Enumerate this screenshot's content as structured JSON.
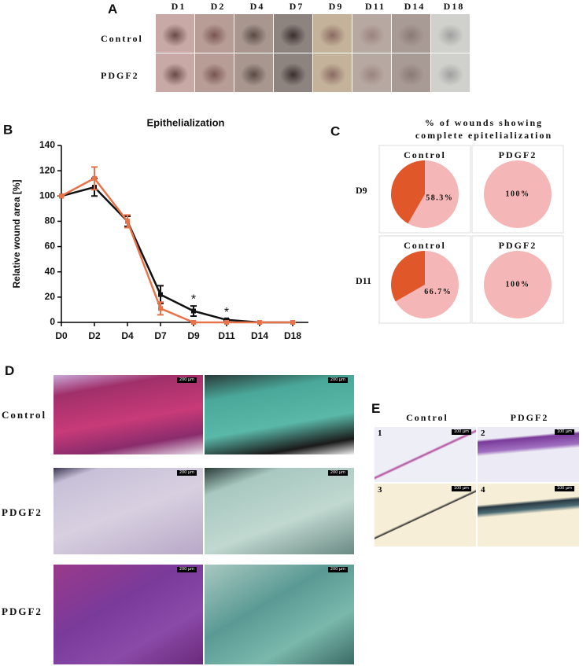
{
  "panel_a": {
    "label": "A",
    "columns": [
      "D1",
      "D2",
      "D4",
      "D7",
      "D9",
      "D11",
      "D14",
      "D18"
    ],
    "rows": [
      "Control",
      "PDGF2"
    ]
  },
  "chart_data": [
    {
      "type": "line",
      "panel_label": "B",
      "title": "Epithelialization",
      "y_label": "Relative wound area [%]",
      "categories": [
        "D0",
        "D2",
        "D4",
        "D7",
        "D9",
        "D11",
        "D14",
        "D18"
      ],
      "series": [
        {
          "color": "#111111",
          "values": [
            100,
            107,
            80,
            22,
            9,
            2,
            0,
            0
          ],
          "errors": [
            0,
            7,
            4,
            7,
            4,
            0.5,
            0,
            0
          ]
        },
        {
          "color": "#e8734a",
          "values": [
            100,
            114,
            80,
            11,
            0,
            0,
            0,
            0
          ],
          "errors": [
            0,
            9,
            5,
            5,
            0,
            0,
            0,
            0
          ]
        }
      ],
      "significance": [
        null,
        null,
        null,
        null,
        "*",
        "*",
        null,
        null
      ],
      "ylim": [
        0,
        140
      ],
      "yticks": [
        0,
        20,
        40,
        60,
        80,
        100,
        120,
        140
      ]
    },
    {
      "type": "pie",
      "panel_label": "C",
      "title": "% of wounds showing complete epitelialization",
      "row_labels": [
        "D9",
        "D11"
      ],
      "pies": [
        {
          "header": "Control",
          "values": [
            58.3,
            41.7
          ],
          "value_labels": [
            "58.3%",
            null
          ],
          "colors": [
            "#f4b6b6",
            "#e0572a"
          ]
        },
        {
          "header": "PDGF2",
          "values": [
            100
          ],
          "value_labels": [
            "100%"
          ],
          "colors": [
            "#f4b6b6"
          ]
        },
        {
          "header": "Control",
          "values": [
            66.7,
            33.3
          ],
          "value_labels": [
            "66.7%",
            null
          ],
          "colors": [
            "#f4b6b6",
            "#e0572a"
          ]
        },
        {
          "header": "PDGF2",
          "values": [
            100
          ],
          "value_labels": [
            "100%"
          ],
          "colors": [
            "#f4b6b6"
          ]
        }
      ]
    }
  ],
  "panel_d": {
    "label": "D",
    "rows": [
      "Control",
      "PDGF2",
      "PDGF2"
    ],
    "scale_bar": "200 μm"
  },
  "panel_e": {
    "label": "E",
    "columns": [
      "Control",
      "PDGF2"
    ],
    "images": [
      "1",
      "2",
      "3",
      "4"
    ],
    "scale_bar": "100 μm"
  }
}
